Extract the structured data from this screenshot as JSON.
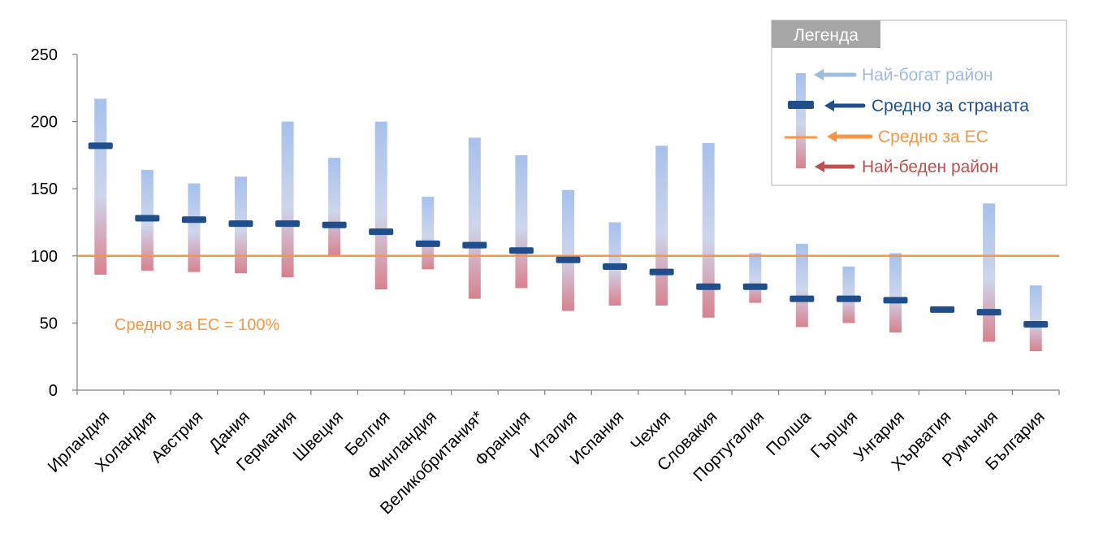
{
  "chart_data": {
    "type": "range-bar",
    "categories": [
      "Ирландия",
      "Холандия",
      "Австрия",
      "Дания",
      "Германия",
      "Швеция",
      "Белгия",
      "Финландия",
      "Великобритания*",
      "Франция",
      "Италия",
      "Испания",
      "Чехия",
      "Словакия",
      "Португалия",
      "Полша",
      "Гърция",
      "Унгария",
      "Хърватия",
      "Румъния",
      "България"
    ],
    "series": [
      {
        "name": "Най-богат район",
        "values": [
          217,
          164,
          154,
          159,
          200,
          173,
          200,
          144,
          188,
          175,
          149,
          125,
          182,
          184,
          102,
          109,
          92,
          102,
          61,
          139,
          78
        ]
      },
      {
        "name": "Средно за страната",
        "values": [
          182,
          128,
          127,
          124,
          124,
          123,
          118,
          109,
          108,
          104,
          97,
          92,
          88,
          77,
          77,
          68,
          68,
          67,
          60,
          58,
          49
        ]
      },
      {
        "name": "Най-беден район",
        "values": [
          86,
          89,
          88,
          87,
          84,
          100,
          75,
          90,
          68,
          76,
          59,
          63,
          63,
          54,
          65,
          47,
          50,
          43,
          59,
          36,
          29
        ]
      }
    ],
    "eu_average": 100,
    "ylim": [
      0,
      250
    ],
    "yticks": [
      0,
      50,
      100,
      150,
      200,
      250
    ],
    "annotation": "Средно за ЕС = 100%",
    "colors": {
      "rich": "#a6c1ec",
      "mid": "#cdd6ec",
      "poor": "#d9818d",
      "country_avg": "#1f4e8c",
      "eu_avg": "#f79646",
      "axis": "#7f7f7f"
    },
    "legend": {
      "title": "Легенда",
      "items": [
        {
          "label": "Най-богат район",
          "color": "#9dbbe3"
        },
        {
          "label": "Средно за страната",
          "color": "#1f4e8c"
        },
        {
          "label": "Средно за ЕС",
          "color": "#f79646"
        },
        {
          "label": "Най-беден район",
          "color": "#c0504d"
        }
      ]
    }
  }
}
